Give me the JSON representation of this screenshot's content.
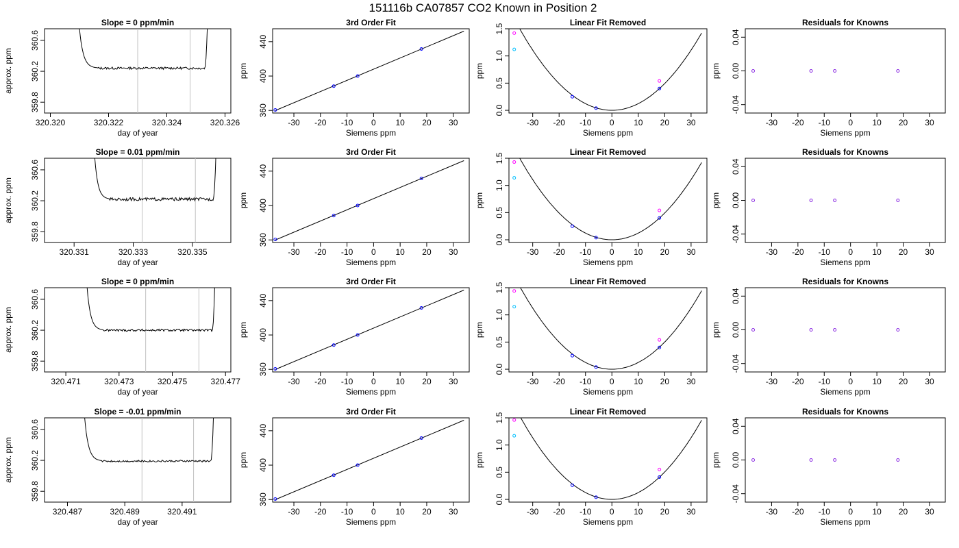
{
  "figure_title": "151116b      CA07857    CO2 Known in Position  2",
  "chart_data": [
    {
      "type": "line",
      "row": 0,
      "col": 0,
      "title": "Slope =  0  ppm/min",
      "xlabel": "day of year",
      "ylabel": "approx. ppm",
      "xlim": [
        320.3198,
        320.3262
      ],
      "ylim": [
        359.66,
        360.75
      ],
      "xticks": [
        320.32,
        320.322,
        320.324,
        320.326
      ],
      "xtick_labels": [
        "320.320",
        "320.322",
        "320.324",
        "320.326"
      ],
      "yticks": [
        359.8,
        360.2,
        360.6
      ],
      "ytick_labels": [
        "359.8",
        "360.2",
        "360.6"
      ],
      "vlines": [
        320.323,
        320.3248
      ],
      "trace": {
        "x_start": 320.321,
        "plateau_start": 320.3216,
        "plateau_end": 320.3253,
        "x_end": 320.3254,
        "level": 360.24,
        "noise": 0.015,
        "rise_value": 360.75
      }
    },
    {
      "type": "scatter",
      "row": 0,
      "col": 1,
      "title": "3rd Order Fit",
      "xlabel": "Siemens ppm",
      "ylabel": "ppm",
      "xlim": [
        -38,
        36
      ],
      "ylim": [
        357,
        455
      ],
      "xticks": [
        -30,
        -20,
        -10,
        0,
        10,
        20,
        30
      ],
      "xtick_labels": [
        "-30",
        "-20",
        "-10",
        "0",
        "10",
        "20",
        "30"
      ],
      "yticks": [
        360,
        400,
        440
      ],
      "ytick_labels": [
        "360",
        "400",
        "440"
      ],
      "points": [
        [
          -37,
          360.6
        ],
        [
          -15,
          388.3
        ],
        [
          -6,
          400.0
        ],
        [
          18,
          431.5
        ]
      ],
      "fit": {
        "slope": 1.3,
        "intercept": 408.0,
        "x_from": -37,
        "x_to": 34
      }
    },
    {
      "type": "scatter",
      "row": 0,
      "col": 2,
      "title": "Linear Fit Removed",
      "xlabel": "Siemens ppm",
      "ylabel": "ppm",
      "xlim": [
        -39,
        36
      ],
      "ylim": [
        -0.05,
        1.5
      ],
      "xticks": [
        -30,
        -20,
        -10,
        0,
        10,
        20,
        30
      ],
      "xtick_labels": [
        "-30",
        "-20",
        "-10",
        "0",
        "10",
        "20",
        "30"
      ],
      "yticks": [
        0.0,
        0.5,
        1.0,
        1.5
      ],
      "ytick_labels": [
        "0.0",
        "0.5",
        "1.0",
        "1.5"
      ],
      "curve": {
        "a": 0.00123,
        "x_from": -38,
        "x_to": 34
      },
      "points_cyan": [
        [
          -37,
          1.12
        ]
      ],
      "points_magenta": [
        [
          -37,
          1.42
        ],
        [
          18,
          0.54
        ]
      ],
      "points_blue": [
        [
          -15,
          0.25
        ],
        [
          -6,
          0.04
        ],
        [
          18,
          0.4
        ]
      ]
    },
    {
      "type": "scatter",
      "row": 0,
      "col": 3,
      "title": "Residuals for Knowns",
      "xlabel": "Siemens ppm",
      "ylabel": "ppm",
      "xlim": [
        -40,
        36
      ],
      "ylim": [
        -0.05,
        0.05
      ],
      "xticks": [
        -30,
        -20,
        -10,
        0,
        10,
        20,
        30
      ],
      "xtick_labels": [
        "-30",
        "-20",
        "-10",
        "0",
        "10",
        "20",
        "30"
      ],
      "yticks": [
        -0.04,
        0.0,
        0.04
      ],
      "ytick_labels": [
        "-0.04",
        "0.00",
        "0.04"
      ],
      "points": [
        [
          -37,
          0
        ],
        [
          -15,
          0
        ],
        [
          -6,
          0
        ],
        [
          18,
          0
        ]
      ]
    },
    {
      "type": "line",
      "row": 1,
      "col": 0,
      "title": "Slope =  0.01  ppm/min",
      "xlabel": "day of year",
      "ylabel": "approx. ppm",
      "xlim": [
        320.33,
        320.3363
      ],
      "ylim": [
        359.66,
        360.75
      ],
      "xticks": [
        320.331,
        320.333,
        320.335
      ],
      "xtick_labels": [
        "320.331",
        "320.333",
        "320.335"
      ],
      "yticks": [
        359.8,
        360.2,
        360.6
      ],
      "ytick_labels": [
        "359.8",
        "360.2",
        "360.6"
      ],
      "vlines": [
        320.3333,
        320.3351
      ],
      "trace": {
        "x_start": 320.3317,
        "plateau_start": 320.3322,
        "plateau_end": 320.3357,
        "x_end": 320.3358,
        "level": 360.22,
        "noise": 0.02,
        "rise_value": 360.75
      }
    },
    {
      "type": "scatter",
      "row": 1,
      "col": 1,
      "title": "3rd Order Fit",
      "xlabel": "Siemens ppm",
      "ylabel": "ppm",
      "xlim": [
        -38,
        36
      ],
      "ylim": [
        357,
        455
      ],
      "xticks": [
        -30,
        -20,
        -10,
        0,
        10,
        20,
        30
      ],
      "xtick_labels": [
        "-30",
        "-20",
        "-10",
        "0",
        "10",
        "20",
        "30"
      ],
      "yticks": [
        360,
        400,
        440
      ],
      "ytick_labels": [
        "360",
        "400",
        "440"
      ],
      "points": [
        [
          -37,
          360.6
        ],
        [
          -15,
          388.3
        ],
        [
          -6,
          400.0
        ],
        [
          18,
          431.5
        ]
      ],
      "fit": {
        "slope": 1.3,
        "intercept": 408.0,
        "x_from": -37,
        "x_to": 34
      }
    },
    {
      "type": "scatter",
      "row": 1,
      "col": 2,
      "title": "Linear Fit Removed",
      "xlabel": "Siemens ppm",
      "ylabel": "ppm",
      "xlim": [
        -39,
        36
      ],
      "ylim": [
        -0.05,
        1.5
      ],
      "xticks": [
        -30,
        -20,
        -10,
        0,
        10,
        20,
        30
      ],
      "xtick_labels": [
        "-30",
        "-20",
        "-10",
        "0",
        "10",
        "20",
        "30"
      ],
      "yticks": [
        0.0,
        0.5,
        1.0,
        1.5
      ],
      "ytick_labels": [
        "0.0",
        "0.5",
        "1.0",
        "1.5"
      ],
      "curve": {
        "a": 0.00123,
        "x_from": -38,
        "x_to": 34
      },
      "points_cyan": [
        [
          -37,
          1.14
        ]
      ],
      "points_magenta": [
        [
          -37,
          1.43
        ],
        [
          18,
          0.54
        ]
      ],
      "points_blue": [
        [
          -15,
          0.25
        ],
        [
          -6,
          0.04
        ],
        [
          18,
          0.4
        ]
      ]
    },
    {
      "type": "scatter",
      "row": 1,
      "col": 3,
      "title": "Residuals for Knowns",
      "xlabel": "Siemens ppm",
      "ylabel": "ppm",
      "xlim": [
        -40,
        36
      ],
      "ylim": [
        -0.05,
        0.05
      ],
      "xticks": [
        -30,
        -20,
        -10,
        0,
        10,
        20,
        30
      ],
      "xtick_labels": [
        "-30",
        "-20",
        "-10",
        "0",
        "10",
        "20",
        "30"
      ],
      "yticks": [
        -0.04,
        0.0,
        0.04
      ],
      "ytick_labels": [
        "-0.04",
        "0.00",
        "0.04"
      ],
      "points": [
        [
          -37,
          0
        ],
        [
          -15,
          0
        ],
        [
          -6,
          0
        ],
        [
          18,
          0
        ]
      ]
    },
    {
      "type": "line",
      "row": 2,
      "col": 0,
      "title": "Slope =  0  ppm/min",
      "xlabel": "day of year",
      "ylabel": "approx. ppm",
      "xlim": [
        320.4702,
        320.4772
      ],
      "ylim": [
        359.66,
        360.75
      ],
      "xticks": [
        320.471,
        320.473,
        320.475,
        320.477
      ],
      "xtick_labels": [
        "320.471",
        "320.473",
        "320.475",
        "320.477"
      ],
      "yticks": [
        359.8,
        360.2,
        360.6
      ],
      "ytick_labels": [
        "359.8",
        "360.2",
        "360.6"
      ],
      "vlines": [
        320.474,
        320.476
      ],
      "trace": {
        "x_start": 320.4718,
        "plateau_start": 320.4724,
        "plateau_end": 320.4765,
        "x_end": 320.4766,
        "level": 360.2,
        "noise": 0.015,
        "rise_value": 360.75
      }
    },
    {
      "type": "scatter",
      "row": 2,
      "col": 1,
      "title": "3rd Order Fit",
      "xlabel": "Siemens ppm",
      "ylabel": "ppm",
      "xlim": [
        -38,
        36
      ],
      "ylim": [
        357,
        455
      ],
      "xticks": [
        -30,
        -20,
        -10,
        0,
        10,
        20,
        30
      ],
      "xtick_labels": [
        "-30",
        "-20",
        "-10",
        "0",
        "10",
        "20",
        "30"
      ],
      "yticks": [
        360,
        400,
        440
      ],
      "ytick_labels": [
        "360",
        "400",
        "440"
      ],
      "points": [
        [
          -37,
          360.6
        ],
        [
          -15,
          388.3
        ],
        [
          -6,
          400.0
        ],
        [
          18,
          431.5
        ]
      ],
      "fit": {
        "slope": 1.3,
        "intercept": 408.0,
        "x_from": -37,
        "x_to": 34
      }
    },
    {
      "type": "scatter",
      "row": 2,
      "col": 2,
      "title": "Linear Fit Removed",
      "xlabel": "Siemens ppm",
      "ylabel": "ppm",
      "xlim": [
        -39,
        36
      ],
      "ylim": [
        -0.05,
        1.5
      ],
      "xticks": [
        -30,
        -20,
        -10,
        0,
        10,
        20,
        30
      ],
      "xtick_labels": [
        "-30",
        "-20",
        "-10",
        "0",
        "10",
        "20",
        "30"
      ],
      "yticks": [
        0.0,
        0.5,
        1.0,
        1.5
      ],
      "ytick_labels": [
        "0.0",
        "0.5",
        "1.0",
        "1.5"
      ],
      "curve": {
        "a": 0.00125,
        "x_from": -38,
        "x_to": 34
      },
      "points_cyan": [
        [
          -37,
          1.15
        ]
      ],
      "points_magenta": [
        [
          -37,
          1.44
        ],
        [
          18,
          0.54
        ]
      ],
      "points_blue": [
        [
          -15,
          0.25
        ],
        [
          -6,
          0.04
        ],
        [
          18,
          0.4
        ]
      ]
    },
    {
      "type": "scatter",
      "row": 2,
      "col": 3,
      "title": "Residuals for Knowns",
      "xlabel": "Siemens ppm",
      "ylabel": "ppm",
      "xlim": [
        -40,
        36
      ],
      "ylim": [
        -0.05,
        0.05
      ],
      "xticks": [
        -30,
        -20,
        -10,
        0,
        10,
        20,
        30
      ],
      "xtick_labels": [
        "-30",
        "-20",
        "-10",
        "0",
        "10",
        "20",
        "30"
      ],
      "yticks": [
        -0.04,
        0.0,
        0.04
      ],
      "ytick_labels": [
        "-0.04",
        "0.00",
        "0.04"
      ],
      "points": [
        [
          -37,
          0
        ],
        [
          -15,
          0
        ],
        [
          -6,
          0
        ],
        [
          18,
          0
        ]
      ]
    },
    {
      "type": "line",
      "row": 3,
      "col": 0,
      "title": "Slope =  -0.01  ppm/min",
      "xlabel": "day of year",
      "ylabel": "approx. ppm",
      "xlim": [
        320.4862,
        320.4927
      ],
      "ylim": [
        359.66,
        360.75
      ],
      "xticks": [
        320.487,
        320.489,
        320.491
      ],
      "xtick_labels": [
        "320.487",
        "320.489",
        "320.491"
      ],
      "yticks": [
        359.8,
        360.2,
        360.6
      ],
      "ytick_labels": [
        "359.8",
        "360.2",
        "360.6"
      ],
      "vlines": [
        320.4896,
        320.4914
      ],
      "trace": {
        "x_start": 320.4876,
        "plateau_start": 320.4882,
        "plateau_end": 320.492,
        "x_end": 320.4921,
        "level": 360.19,
        "noise": 0.012,
        "rise_value": 360.75
      }
    },
    {
      "type": "scatter",
      "row": 3,
      "col": 1,
      "title": "3rd Order Fit",
      "xlabel": "Siemens ppm",
      "ylabel": "ppm",
      "xlim": [
        -38,
        36
      ],
      "ylim": [
        357,
        455
      ],
      "xticks": [
        -30,
        -20,
        -10,
        0,
        10,
        20,
        30
      ],
      "xtick_labels": [
        "-30",
        "-20",
        "-10",
        "0",
        "10",
        "20",
        "30"
      ],
      "yticks": [
        360,
        400,
        440
      ],
      "ytick_labels": [
        "360",
        "400",
        "440"
      ],
      "points": [
        [
          -37,
          360.6
        ],
        [
          -15,
          388.3
        ],
        [
          -6,
          400.0
        ],
        [
          18,
          431.5
        ]
      ],
      "fit": {
        "slope": 1.3,
        "intercept": 408.0,
        "x_from": -37,
        "x_to": 34
      }
    },
    {
      "type": "scatter",
      "row": 3,
      "col": 2,
      "title": "Linear Fit Removed",
      "xlabel": "Siemens ppm",
      "ylabel": "ppm",
      "xlim": [
        -39,
        36
      ],
      "ylim": [
        -0.05,
        1.5
      ],
      "xticks": [
        -30,
        -20,
        -10,
        0,
        10,
        20,
        30
      ],
      "xtick_labels": [
        "-30",
        "-20",
        "-10",
        "0",
        "10",
        "20",
        "30"
      ],
      "yticks": [
        0.0,
        0.5,
        1.0,
        1.5
      ],
      "ytick_labels": [
        "0.0",
        "0.5",
        "1.0",
        "1.5"
      ],
      "curve": {
        "a": 0.00126,
        "x_from": -38,
        "x_to": 34
      },
      "points_cyan": [
        [
          -37,
          1.17
        ]
      ],
      "points_magenta": [
        [
          -37,
          1.46
        ],
        [
          18,
          0.55
        ]
      ],
      "points_blue": [
        [
          -15,
          0.26
        ],
        [
          -6,
          0.04
        ],
        [
          18,
          0.41
        ]
      ]
    },
    {
      "type": "scatter",
      "row": 3,
      "col": 3,
      "title": "Residuals for Knowns",
      "xlabel": "Siemens ppm",
      "ylabel": "ppm",
      "xlim": [
        -40,
        36
      ],
      "ylim": [
        -0.05,
        0.05
      ],
      "xticks": [
        -30,
        -20,
        -10,
        0,
        10,
        20,
        30
      ],
      "xtick_labels": [
        "-30",
        "-20",
        "-10",
        "0",
        "10",
        "20",
        "30"
      ],
      "yticks": [
        -0.04,
        0.0,
        0.04
      ],
      "ytick_labels": [
        "-0.04",
        "0.00",
        "0.04"
      ],
      "points": [
        [
          -37,
          0
        ],
        [
          -15,
          0
        ],
        [
          -6,
          0
        ],
        [
          18,
          0
        ]
      ]
    }
  ],
  "colors": {
    "axis": "#000000",
    "line": "#000000",
    "vline": "#c0c0c0",
    "fit_point": "#0000ff",
    "cyan": "#00bfff",
    "magenta": "#ff00ff",
    "residual": "#8a2be2"
  }
}
